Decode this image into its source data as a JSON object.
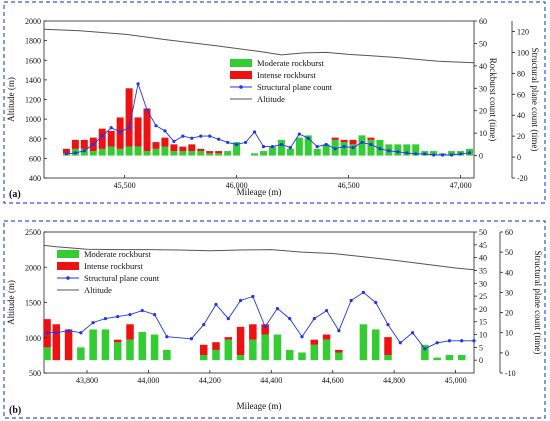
{
  "colors": {
    "moderate": "#33cc33",
    "intense": "#ee1111",
    "structural": "#2233ee",
    "altitude": "#555555",
    "frame": "#3355dd"
  },
  "chart_data": [
    {
      "type": "bar",
      "panel_label": "(a)",
      "xlabel": "Mileage (m)",
      "ylabel_left": "Altitude (m)",
      "ylabel_right_inner": "Rockburst count (time)",
      "ylabel_right_outer": "Structural plane count (time)",
      "xlim": [
        45140,
        47060
      ],
      "ylim_left": [
        400,
        2000
      ],
      "ylim_right_inner": [
        -10,
        60
      ],
      "ylim_right_outer": [
        -20,
        130
      ],
      "x_ticks": [
        45500,
        46000,
        46500,
        47000
      ],
      "x_tick_labels": [
        "45,500",
        "46,000",
        "46,500",
        "47,000"
      ],
      "y_left_ticks": [
        400,
        600,
        800,
        1000,
        1200,
        1400,
        1600,
        1800,
        2000
      ],
      "y_inner_ticks": [
        0,
        10,
        20,
        30,
        40,
        50,
        60
      ],
      "y_outer_ticks": [
        -20,
        0,
        20,
        40,
        60,
        80,
        100,
        120
      ],
      "legend": [
        "Moderate rockburst",
        "Intense rockburst",
        "Structural plane count",
        "Altitude"
      ],
      "categories": [
        45240,
        45280,
        45320,
        45360,
        45400,
        45440,
        45480,
        45520,
        45560,
        45600,
        45640,
        45680,
        45720,
        45760,
        45800,
        45840,
        45880,
        45920,
        45960,
        46000,
        46040,
        46080,
        46120,
        46160,
        46200,
        46240,
        46280,
        46320,
        46360,
        46400,
        46440,
        46480,
        46520,
        46560,
        46600,
        46640,
        46680,
        46720,
        46760,
        46800,
        46840,
        46880,
        46920,
        46960,
        47000,
        47040
      ],
      "series": [
        {
          "name": "Moderate rockburst",
          "values": [
            1,
            3,
            3,
            2,
            3,
            4,
            3,
            4,
            4,
            2,
            3,
            4,
            2,
            2,
            2,
            2,
            1,
            1,
            2,
            6,
            0,
            1,
            2,
            4,
            7,
            3,
            8,
            9,
            3,
            5,
            7,
            6,
            5,
            9,
            7,
            7,
            5,
            5,
            5,
            5,
            2,
            2,
            1,
            2,
            2,
            3
          ]
        },
        {
          "name": "Intense rockburst",
          "values": [
            2,
            4,
            4,
            6,
            9,
            7,
            14,
            26,
            13,
            19,
            3,
            4,
            3,
            2,
            3,
            1,
            1,
            1,
            0,
            0,
            0,
            0,
            0,
            0,
            0,
            0,
            0,
            0,
            0,
            0,
            1,
            1,
            2,
            0,
            1,
            0,
            0,
            0,
            0,
            0,
            0,
            0,
            0,
            0,
            0,
            0
          ]
        },
        {
          "name": "Structural plane count",
          "values": [
            3,
            4,
            6,
            12,
            20,
            28,
            24,
            28,
            70,
            45,
            30,
            25,
            15,
            20,
            18,
            20,
            20,
            17,
            14,
            12,
            14,
            24,
            10,
            10,
            12,
            9,
            22,
            18,
            10,
            12,
            8,
            10,
            9,
            14,
            12,
            8,
            6,
            5,
            4,
            3,
            3,
            2,
            2,
            2,
            3,
            4
          ]
        }
      ],
      "altitude": {
        "x": [
          45140,
          45300,
          45500,
          45700,
          45900,
          46100,
          46200,
          46300,
          46400,
          46500,
          46600,
          46700,
          46800,
          46900,
          47060
        ],
        "values": [
          1915,
          1900,
          1865,
          1805,
          1750,
          1690,
          1655,
          1675,
          1680,
          1660,
          1645,
          1630,
          1610,
          1590,
          1575
        ]
      }
    },
    {
      "type": "bar",
      "panel_label": "(b)",
      "xlabel": "Mileage (m)",
      "ylabel_left": "Altitude (m)",
      "ylabel_right_outer": "Structural plane count (time)",
      "xlim": [
        43660,
        45060
      ],
      "ylim_left": [
        500,
        2500
      ],
      "ylim_right_inner": [
        -5,
        50
      ],
      "ylim_right_outer": [
        -10,
        60
      ],
      "x_ticks": [
        43800,
        44000,
        44200,
        44400,
        44600,
        44800,
        45000
      ],
      "x_tick_labels": [
        "43,800",
        "44,000",
        "44,200",
        "44,400",
        "44,600",
        "44,800",
        "45,000"
      ],
      "y_left_ticks": [
        500,
        1000,
        1500,
        2000,
        2500
      ],
      "y_inner_ticks": [
        0,
        5,
        10,
        15,
        20,
        25,
        30,
        35,
        40,
        45,
        50
      ],
      "y_outer_ticks": [
        -10,
        0,
        10,
        20,
        30,
        40,
        50,
        60
      ],
      "legend": [
        "Moderate rockburst",
        "Intense rockburst",
        "Structural plane count",
        "Altitude"
      ],
      "categories": [
        43670,
        43700,
        43740,
        43780,
        43820,
        43860,
        43900,
        43940,
        43980,
        44020,
        44060,
        44140,
        44180,
        44220,
        44260,
        44300,
        44340,
        44380,
        44420,
        44460,
        44500,
        44540,
        44580,
        44620,
        44660,
        44700,
        44740,
        44780,
        44820,
        44860,
        44900,
        44940,
        44980,
        45020,
        45060
      ],
      "series": [
        {
          "name": "Moderate rockburst",
          "values": [
            5,
            0,
            0,
            5,
            12,
            12,
            7,
            8,
            11,
            10,
            4,
            0,
            2,
            4,
            8,
            2,
            8,
            10,
            10,
            4,
            3,
            6,
            8,
            3,
            0,
            14,
            12,
            2,
            0,
            0,
            6,
            1,
            2,
            2,
            0
          ]
        },
        {
          "name": "Intense rockburst",
          "values": [
            11,
            14,
            12,
            0,
            0,
            0,
            1,
            6,
            0,
            0,
            0,
            0,
            4,
            3,
            1,
            11,
            6,
            4,
            0,
            0,
            0,
            2,
            2,
            1,
            0,
            0,
            0,
            7,
            0,
            0,
            0,
            0,
            0,
            0,
            0
          ]
        },
        {
          "name": "Structural plane count",
          "values": [
            10,
            10,
            11,
            10,
            15,
            17,
            18,
            19,
            21,
            19,
            8,
            7,
            14,
            24,
            17,
            26,
            28,
            13,
            22,
            17,
            8,
            17,
            21,
            11,
            26,
            30,
            25,
            14,
            5,
            10,
            2,
            5,
            6,
            6,
            6
          ]
        }
      ],
      "altitude": {
        "x": [
          43660,
          43700,
          43800,
          43900,
          44000,
          44100,
          44200,
          44300,
          44400,
          44500,
          44600,
          44700,
          44800,
          44900,
          45000,
          45060
        ],
        "values": [
          2310,
          2290,
          2255,
          2250,
          2250,
          2245,
          2235,
          2245,
          2250,
          2215,
          2195,
          2150,
          2100,
          2045,
          1990,
          1965
        ]
      }
    }
  ]
}
